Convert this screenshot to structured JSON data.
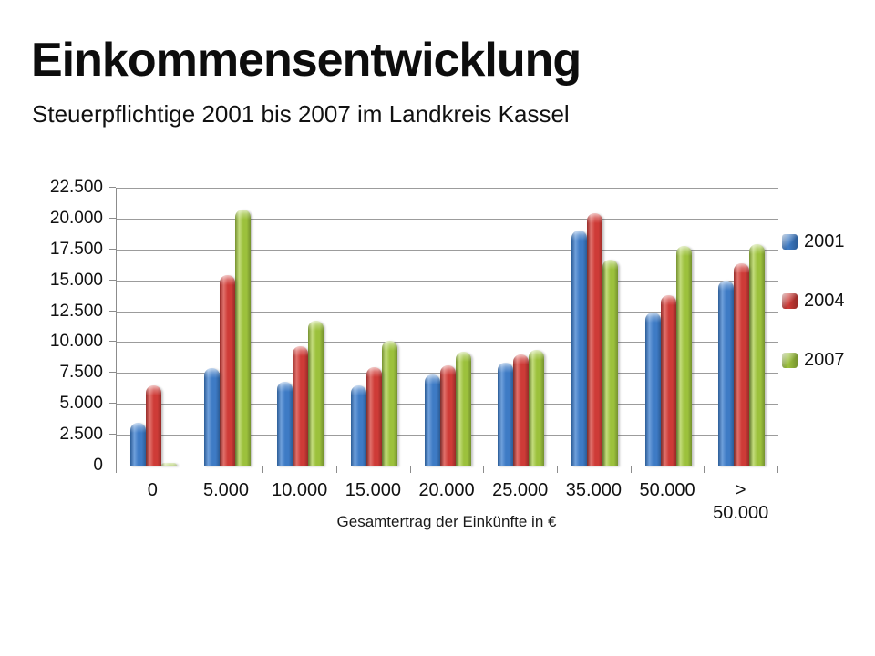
{
  "slide": {
    "title": "Einkommensentwicklung",
    "subtitle": "Steuerpflichtige 2001 bis 2007 im Landkreis Kassel"
  },
  "chart_data": {
    "type": "bar",
    "title": "Einkommensentwicklung",
    "subtitle": "Steuerpflichtige 2001 bis 2007 im Landkreis Kassel",
    "xlabel": "Gesamtertrag der Einkünfte in €",
    "ylabel": "",
    "ylim": [
      0,
      22500
    ],
    "ytick_step": 2500,
    "ytick_labels": [
      "0",
      "2.500",
      "5.000",
      "7.500",
      "10.000",
      "12.500",
      "15.000",
      "17.500",
      "20.000",
      "22.500"
    ],
    "grid": true,
    "legend_position": "right",
    "categories": [
      "0",
      "5.000",
      "10.000",
      "15.000",
      "20.000",
      "25.000",
      "35.000",
      "50.000",
      ">\n50.000"
    ],
    "series": [
      {
        "name": "2001",
        "color": "#3E7BC5",
        "color_light": "#6FA0DB",
        "color_dark": "#2B5C97",
        "values": [
          3500,
          7900,
          6800,
          6500,
          7400,
          8300,
          19000,
          12400,
          15000
        ]
      },
      {
        "name": "2004",
        "color": "#CE3B37",
        "color_light": "#E0716C",
        "color_dark": "#972B28",
        "values": [
          6500,
          15400,
          9700,
          8000,
          8100,
          9000,
          20400,
          13800,
          16400
        ]
      },
      {
        "name": "2007",
        "color": "#9CC13C",
        "color_light": "#C3DC7D",
        "color_dark": "#75922E",
        "values": [
          200,
          20700,
          11700,
          10100,
          9200,
          9400,
          16700,
          17800,
          17900
        ]
      }
    ]
  }
}
